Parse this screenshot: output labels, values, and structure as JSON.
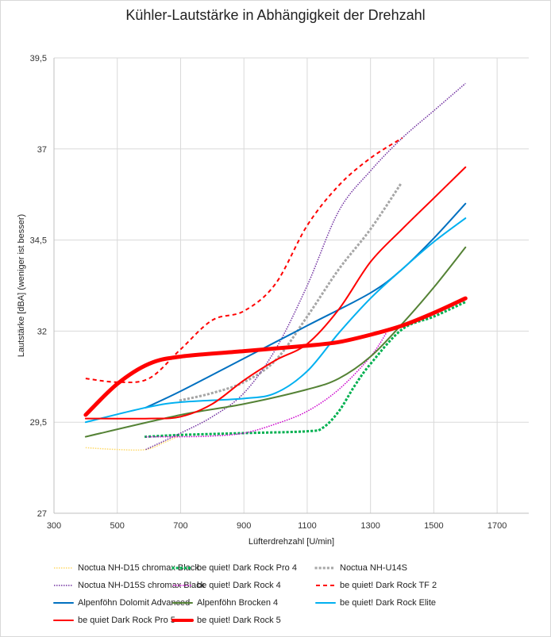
{
  "chart_data": {
    "type": "line",
    "title": "Kühler-Lautstärke in Abhängigkeit der Drehzahl",
    "xlabel": "Lüfterdrehzahl [U/min]",
    "ylabel": "Lautstärke [dBA] (weniger ist besser)",
    "xlim": [
      300,
      1800
    ],
    "ylim": [
      27,
      39.5
    ],
    "xticks": [
      "300",
      "500",
      "700",
      "900",
      "1100",
      "1300",
      "1500",
      "1700"
    ],
    "xtick_values": [
      300,
      500,
      700,
      900,
      1100,
      1300,
      1500,
      1700
    ],
    "yticks": [
      "27",
      "29,5",
      "32",
      "34,5",
      "37",
      "39,5"
    ],
    "ytick_values": [
      27,
      29.5,
      32,
      34.5,
      37,
      39.5
    ],
    "grid": true,
    "legend_position": "bottom",
    "series": [
      {
        "name": "Noctua NH-D15 chromax Black",
        "color": "#ffd966",
        "style": "dotted-fine",
        "width": 1.5,
        "x": [
          400,
          500,
          590,
          650,
          700
        ],
        "y": [
          28.8,
          28.75,
          28.75,
          28.95,
          29.15
        ]
      },
      {
        "name": "be quiet! Dark Rock Pro 4",
        "color": "#00b050",
        "style": "dotted-bold",
        "width": 3,
        "x": [
          590,
          700,
          900,
          1100,
          1150,
          1200,
          1250,
          1300,
          1400,
          1500,
          1600
        ],
        "y": [
          29.1,
          29.15,
          29.2,
          29.25,
          29.35,
          29.8,
          30.5,
          31.1,
          32.05,
          32.4,
          32.8
        ]
      },
      {
        "name": "Noctua NH-U14S",
        "color": "#a6a6a6",
        "style": "dotted-bold",
        "width": 3,
        "x": [
          700,
          800,
          900,
          1000,
          1100,
          1200,
          1300,
          1400
        ],
        "y": [
          30.1,
          30.3,
          30.6,
          31.2,
          32.4,
          33.7,
          34.8,
          36.1
        ]
      },
      {
        "name": "Noctua NH-D15S chromax Black",
        "color": "#7030a0",
        "style": "dotted-fine",
        "width": 1.5,
        "x": [
          590,
          700,
          800,
          900,
          1000,
          1100,
          1200,
          1300,
          1400,
          1500,
          1600
        ],
        "y": [
          28.75,
          29.2,
          29.65,
          30.3,
          31.5,
          33.25,
          35.3,
          36.4,
          37.3,
          38.05,
          38.8
        ]
      },
      {
        "name": "be quiet! Dark Rock 4",
        "color": "#cc00cc",
        "style": "dotted-fine",
        "width": 1.5,
        "x": [
          590,
          700,
          800,
          900,
          1000,
          1100,
          1200,
          1300,
          1350
        ],
        "y": [
          29.1,
          29.1,
          29.12,
          29.2,
          29.45,
          29.8,
          30.4,
          31.3,
          31.95
        ]
      },
      {
        "name": "be quiet! Dark Rock TF 2",
        "color": "#ff0000",
        "style": "dashed",
        "width": 2,
        "x": [
          400,
          500,
          600,
          700,
          800,
          900,
          1000,
          1100,
          1200,
          1300,
          1400
        ],
        "y": [
          30.7,
          30.6,
          30.7,
          31.5,
          32.3,
          32.55,
          33.3,
          34.9,
          36.0,
          36.75,
          37.3
        ]
      },
      {
        "name": "Alpenföhn Dolomit Advanced",
        "color": "#0070c0",
        "style": "solid",
        "width": 2,
        "x": [
          590,
          700,
          900,
          1100,
          1300,
          1400,
          1500,
          1600
        ],
        "y": [
          29.9,
          30.35,
          31.25,
          32.15,
          33.05,
          33.7,
          34.55,
          35.5
        ]
      },
      {
        "name": "Alpenföhn Brocken 4",
        "color": "#548235",
        "style": "solid",
        "width": 2,
        "x": [
          400,
          700,
          900,
          1100,
          1200,
          1300,
          1400,
          1500,
          1600
        ],
        "y": [
          29.1,
          29.7,
          30.0,
          30.4,
          30.7,
          31.3,
          32.2,
          33.2,
          34.3
        ]
      },
      {
        "name": "be quiet! Dark Rock Elite",
        "color": "#00b0f0",
        "style": "solid",
        "width": 2,
        "x": [
          400,
          590,
          700,
          900,
          1000,
          1100,
          1200,
          1300,
          1400,
          1500,
          1600
        ],
        "y": [
          29.5,
          29.9,
          30.05,
          30.15,
          30.3,
          30.9,
          31.95,
          32.9,
          33.7,
          34.45,
          35.1
        ]
      },
      {
        "name": "be quiet Dark Rock Pro 5",
        "color": "#ff0000",
        "style": "solid",
        "width": 2,
        "x": [
          400,
          600,
          700,
          800,
          900,
          1000,
          1100,
          1200,
          1300,
          1400,
          1500,
          1600
        ],
        "y": [
          29.6,
          29.6,
          29.65,
          30.0,
          30.65,
          31.2,
          31.65,
          32.6,
          33.9,
          34.8,
          35.65,
          36.5
        ]
      },
      {
        "name": "be quiet! Dark Rock 5",
        "color": "#ff0000",
        "style": "solid",
        "width": 5,
        "x": [
          400,
          500,
          600,
          700,
          900,
          1100,
          1200,
          1300,
          1400,
          1500,
          1600
        ],
        "y": [
          29.7,
          30.55,
          31.1,
          31.3,
          31.45,
          31.6,
          31.7,
          31.9,
          32.15,
          32.5,
          32.9
        ]
      }
    ]
  }
}
